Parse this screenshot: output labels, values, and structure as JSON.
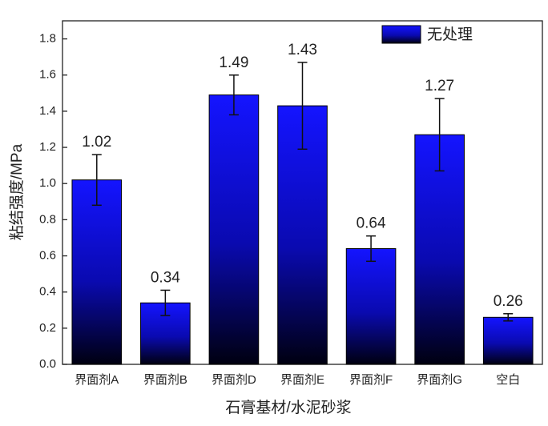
{
  "chart_data": {
    "type": "bar",
    "xlabel": "石膏基材/水泥砂浆",
    "ylabel": "粘结强度/MPa",
    "categories": [
      "界面剂A",
      "界面剂B",
      "界面剂D",
      "界面剂E",
      "界面剂F",
      "界面剂G",
      "空白"
    ],
    "series": [
      {
        "name": "无处理",
        "color": "#1414ff",
        "values": [
          1.02,
          0.34,
          1.49,
          1.43,
          0.64,
          1.27,
          0.26
        ],
        "errors": [
          0.14,
          0.07,
          0.11,
          0.24,
          0.07,
          0.2,
          0.02
        ]
      }
    ],
    "ylim": [
      0,
      1.9
    ],
    "yticks": [
      {
        "value": 0,
        "label": "0.0"
      },
      0.2,
      0.4,
      0.6,
      0.8,
      {
        "value": 1,
        "label": "1.0"
      },
      1.2,
      1.4,
      1.6,
      1.8
    ],
    "legend": "top-right",
    "grid": false
  }
}
